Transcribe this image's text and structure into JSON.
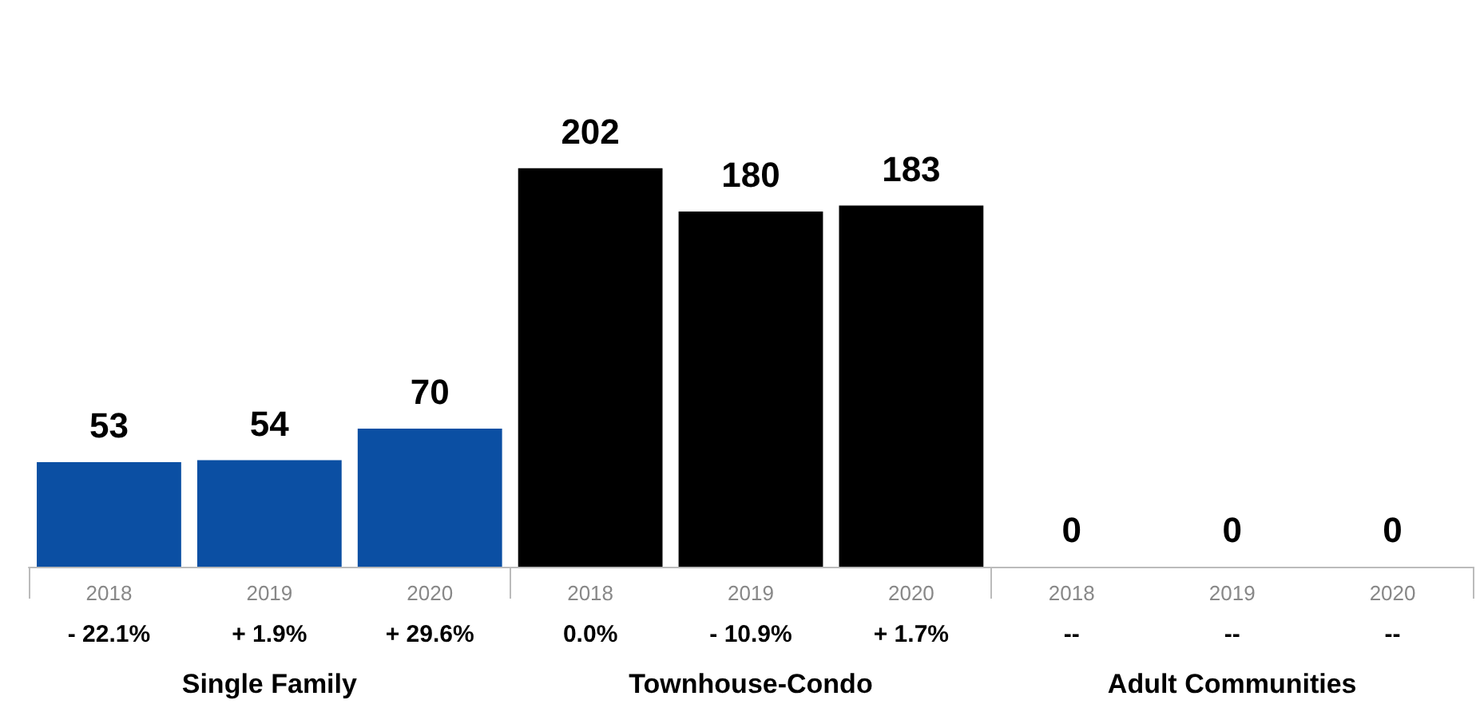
{
  "chart_data": {
    "type": "bar",
    "data_labels": true,
    "categories": [
      "2018",
      "2019",
      "2020",
      "2018",
      "2019",
      "2020",
      "2018",
      "2019",
      "2020"
    ],
    "values": [
      53,
      54,
      70,
      202,
      180,
      183,
      0,
      0,
      0
    ],
    "colors": [
      "#0b4fa3",
      "#0b4fa3",
      "#0b4fa3",
      "#000000",
      "#000000",
      "#000000",
      "#000000",
      "#000000",
      "#000000"
    ],
    "annotations": [
      "- 22.1%",
      "+ 1.9%",
      "+ 29.6%",
      "0.0%",
      "- 10.9%",
      "+ 1.7%",
      "--",
      "--",
      "--",
      "Single Family",
      "Townhouse-Condo",
      "Adult Communities"
    ]
  }
}
